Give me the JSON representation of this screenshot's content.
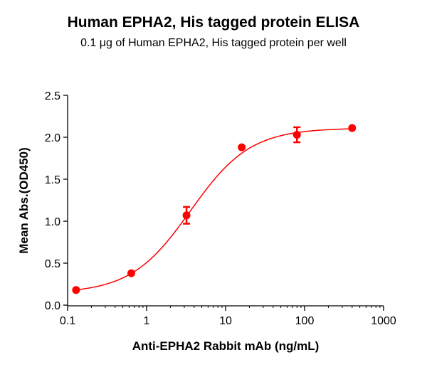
{
  "header": {
    "title": "Human EPHA2, His tagged protein ELISA",
    "subtitle": "0.1 μg of Human EPHA2, His tagged protein per well"
  },
  "colors": {
    "series": "#ff0000",
    "axis": "#000000"
  },
  "chart_data": {
    "type": "scatter",
    "title": "Human EPHA2, His tagged protein ELISA",
    "subtitle": "0.1 μg of Human EPHA2, His tagged protein per well",
    "xlabel": "Anti-EPHA2 Rabbit mAb (ng/mL)",
    "ylabel": "Mean Abs.(OD450)",
    "xscale": "log",
    "xlim": [
      0.1,
      1000
    ],
    "ylim": [
      0.0,
      2.5
    ],
    "x_ticks": [
      "0.1",
      "1",
      "10",
      "100",
      "1000"
    ],
    "y_ticks": [
      "0.0",
      "0.5",
      "1.0",
      "1.5",
      "2.0",
      "2.5"
    ],
    "grid": false,
    "legend": null,
    "series": [
      {
        "name": "Anti-EPHA2 Rabbit mAb",
        "color": "#ff0000",
        "x": [
          0.128,
          0.64,
          3.2,
          16,
          80,
          400
        ],
        "y": [
          0.18,
          0.38,
          1.07,
          1.88,
          2.03,
          2.11
        ],
        "error": [
          0.0,
          0.0,
          0.1,
          0.0,
          0.09,
          0.0
        ],
        "fit": "4-parameter logistic curve"
      }
    ]
  }
}
